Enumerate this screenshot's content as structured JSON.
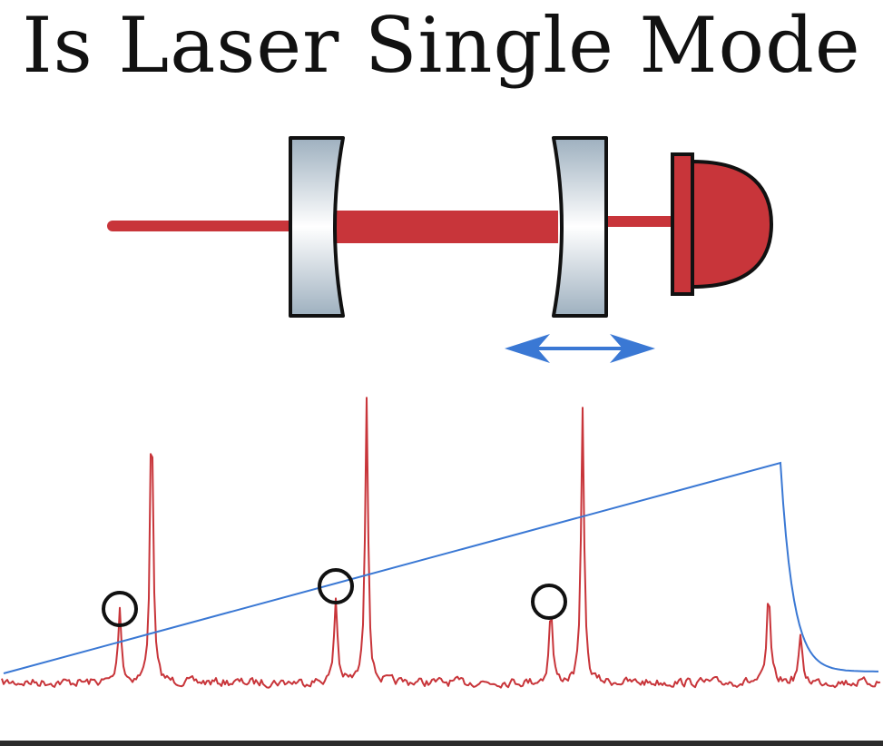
{
  "title": "Is Laser Single Mode",
  "colors": {
    "beam": "#c8353a",
    "mirror_edge": "#9eb0bf",
    "mirror_center": "#ffffff",
    "outline": "#111111",
    "arrow": "#3a78d4",
    "ramp": "#3a78d4",
    "signal": "#c8353a",
    "marker": "#111111"
  },
  "icons": {
    "laser_beam": "laser-beam",
    "input_mirror": "concave-mirror",
    "output_mirror": "concave-mirror",
    "detector": "photodiode-icon",
    "scan_arrow": "double-arrow-icon",
    "side_mode_marker": "circle-marker"
  },
  "chart_data": {
    "type": "line",
    "series": [
      {
        "values": "transmission signal with 4 tall periodic peaks and 3 small side peaks"
      },
      {
        "values": "linear piezo ramp then fast drop"
      }
    ]
  }
}
